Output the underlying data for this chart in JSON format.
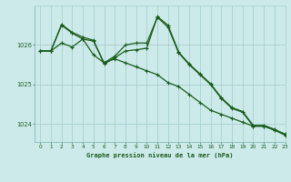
{
  "title": "Graphe pression niveau de la mer (hPa)",
  "background_color": "#cceaea",
  "grid_color": "#aacfcf",
  "line_color": "#1a5c1a",
  "xlim": [
    -0.5,
    23
  ],
  "ylim": [
    1023.55,
    1027.0
  ],
  "yticks": [
    1024,
    1025,
    1026
  ],
  "xticks": [
    0,
    1,
    2,
    3,
    4,
    5,
    6,
    7,
    8,
    9,
    10,
    11,
    12,
    13,
    14,
    15,
    16,
    17,
    18,
    19,
    20,
    21,
    22,
    23
  ],
  "series1_x": [
    0,
    1,
    2,
    3,
    4,
    5,
    6,
    7,
    8,
    9,
    10,
    11,
    12,
    13,
    14,
    15,
    16,
    17,
    18,
    19,
    20,
    21,
    22,
    23
  ],
  "series1_y": [
    1025.85,
    1025.85,
    1026.05,
    1025.95,
    1026.15,
    1025.75,
    1025.55,
    1025.65,
    1025.55,
    1025.45,
    1025.35,
    1025.25,
    1025.05,
    1024.95,
    1024.75,
    1024.55,
    1024.35,
    1024.25,
    1024.15,
    1024.05,
    1023.95,
    1023.95,
    1023.85,
    1023.75
  ],
  "series2_x": [
    0,
    1,
    2,
    3,
    4,
    5,
    6,
    7,
    8,
    9,
    10,
    11,
    12,
    13,
    14,
    15,
    16,
    17,
    18,
    19,
    20,
    21,
    22,
    23
  ],
  "series2_y": [
    1025.85,
    1025.85,
    1026.5,
    1026.3,
    1026.15,
    1026.1,
    1025.55,
    1025.72,
    1026.0,
    1026.05,
    1026.05,
    1026.7,
    1026.45,
    1025.8,
    1025.5,
    1025.25,
    1025.0,
    1024.65,
    1024.4,
    1024.3,
    1023.95,
    1023.95,
    1023.85,
    1023.72
  ],
  "series3_x": [
    0,
    1,
    2,
    3,
    4,
    5,
    6,
    7,
    8,
    9,
    10,
    11,
    12,
    13,
    14,
    15,
    16,
    17,
    18,
    19,
    20,
    21,
    22,
    23
  ],
  "series3_y": [
    1025.85,
    1025.85,
    1026.52,
    1026.32,
    1026.2,
    1026.12,
    1025.52,
    1025.68,
    1025.85,
    1025.88,
    1025.92,
    1026.72,
    1026.5,
    1025.82,
    1025.52,
    1025.27,
    1025.02,
    1024.67,
    1024.42,
    1024.32,
    1023.97,
    1023.97,
    1023.87,
    1023.74
  ]
}
